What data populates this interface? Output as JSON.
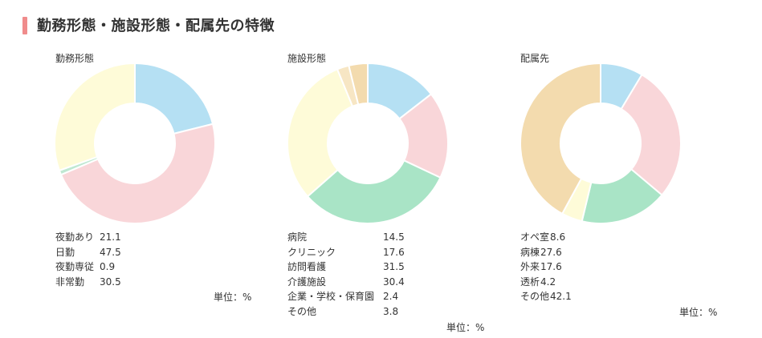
{
  "page_title": "勤務形態・施設形態・配属先の特徴",
  "chart_data": [
    {
      "type": "pie",
      "title": "勤務形態",
      "unit": "単位：%",
      "items": [
        {
          "label": "夜勤あり",
          "value": 21.1,
          "value_text": "21.1",
          "color": "#b5e0f3"
        },
        {
          "label": "日勤",
          "value": 47.5,
          "value_text": "47.5",
          "color": "#f9d6d9"
        },
        {
          "label": "夜勤専従",
          "value": 0.9,
          "value_text": "0.9",
          "color": "#bfe8d2"
        },
        {
          "label": "非常勤",
          "value": 30.5,
          "value_text": "30.5",
          "color": "#fefbd8"
        }
      ]
    },
    {
      "type": "pie",
      "title": "施設形態",
      "unit": "単位：%",
      "items": [
        {
          "label": "病院",
          "value": 14.5,
          "value_text": "14.5",
          "color": "#b5e0f3"
        },
        {
          "label": "クリニック",
          "value": 17.6,
          "value_text": "17.6",
          "color": "#f9d6d9"
        },
        {
          "label": "訪問看護",
          "value": 31.5,
          "value_text": "31.5",
          "color": "#a9e4c6"
        },
        {
          "label": "介護施設",
          "value": 30.4,
          "value_text": "30.4",
          "color": "#fefbd8"
        },
        {
          "label": "企業・学校・保育園",
          "value": 2.4,
          "value_text": "2.4",
          "color": "#f7e6c4"
        },
        {
          "label": "その他",
          "value": 3.8,
          "value_text": "3.8",
          "color": "#f3dbae"
        }
      ]
    },
    {
      "type": "pie",
      "title": "配属先",
      "unit": "単位：%",
      "items": [
        {
          "label": "オペ室",
          "value": 8.6,
          "value_text": "8.6",
          "color": "#b5e0f3"
        },
        {
          "label": "病棟",
          "value": 27.6,
          "value_text": "27.6",
          "color": "#f9d6d9"
        },
        {
          "label": "外来",
          "value": 17.6,
          "value_text": "17.6",
          "color": "#a9e4c6"
        },
        {
          "label": "透析",
          "value": 4.2,
          "value_text": "4.2",
          "color": "#fefbd8"
        },
        {
          "label": "その他",
          "value": 42.1,
          "value_text": "42.1",
          "color": "#f3dbae"
        }
      ]
    }
  ]
}
